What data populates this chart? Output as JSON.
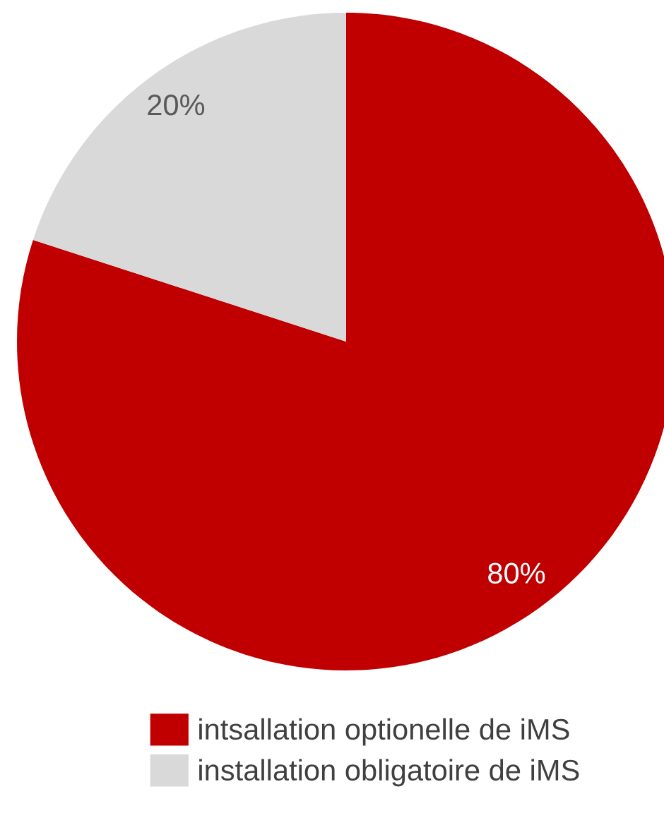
{
  "chart_data": {
    "type": "pie",
    "categories": [
      "intsallation optionelle de iMS",
      "installation obligatoire de iMS"
    ],
    "values": [
      80,
      20
    ],
    "colors": [
      "#c00000",
      "#d9d9d9"
    ],
    "value_labels": [
      "80%",
      "20%"
    ],
    "legend": "bottom"
  }
}
